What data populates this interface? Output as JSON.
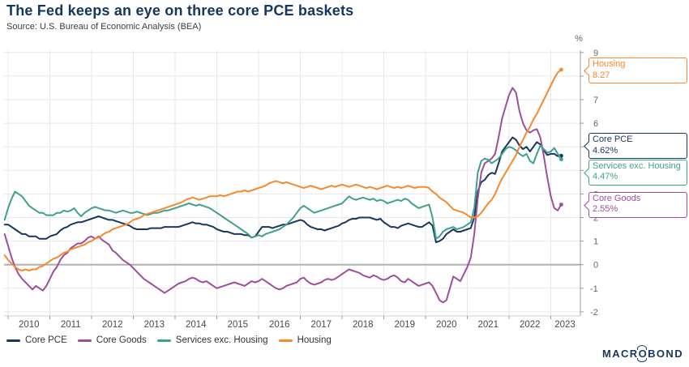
{
  "title": "The Fed keeps an eye on three core PCE baskets",
  "source": "Source: U.S. Bureau of Economic Analysis (BEA)",
  "axis": {
    "unit_label": "%",
    "y_ticks": [
      9,
      8,
      7,
      6,
      5,
      4,
      3,
      2,
      1,
      0,
      -1,
      -2
    ],
    "x_ticks": [
      2010,
      2011,
      2012,
      2013,
      2014,
      2015,
      2016,
      2017,
      2018,
      2019,
      2020,
      2021,
      2022,
      2023
    ]
  },
  "callouts": [
    {
      "label": "Housing",
      "value": "8.27",
      "color": "#f6882d"
    },
    {
      "label": "Core PCE",
      "value": "4.62%",
      "color": "#17375e"
    },
    {
      "label": "Services exc. Housing",
      "value": "4.47%",
      "color": "#3fa08d"
    },
    {
      "label": "Core Goods",
      "value": "2.55%",
      "color": "#9d4f9d"
    }
  ],
  "legend": [
    {
      "label": "Core PCE",
      "color": "#17375e"
    },
    {
      "label": "Core Goods",
      "color": "#9d4f9d"
    },
    {
      "label": "Services exc. Housing",
      "color": "#3fa08d"
    },
    {
      "label": "Housing",
      "color": "#f6882d"
    }
  ],
  "logo": {
    "pre": "MACR",
    "o": "O",
    "post": "BOND"
  },
  "chart_data": {
    "type": "line",
    "title": "The Fed keeps an eye on three core PCE baskets",
    "xlabel": "",
    "ylabel": "%",
    "ylim": [
      -2,
      9
    ],
    "x_range": [
      2010,
      2023
    ],
    "grid": true,
    "legend_position": "bottom",
    "frequency": "monthly",
    "x_start": "2009-12",
    "x_end": "2023-04",
    "series": [
      {
        "id": "core-pce",
        "name": "Core PCE",
        "color": "#17375e",
        "last_label": "4.62%",
        "values": [
          1.7,
          1.7,
          1.6,
          1.5,
          1.4,
          1.3,
          1.3,
          1.2,
          1.2,
          1.2,
          1.1,
          1.1,
          1.1,
          1.2,
          1.25,
          1.3,
          1.45,
          1.55,
          1.6,
          1.7,
          1.75,
          1.8,
          1.8,
          1.85,
          1.9,
          1.95,
          2.0,
          2.05,
          2.0,
          1.95,
          1.9,
          1.9,
          1.85,
          1.8,
          1.75,
          1.7,
          1.65,
          1.55,
          1.5,
          1.5,
          1.5,
          1.5,
          1.55,
          1.55,
          1.55,
          1.55,
          1.6,
          1.6,
          1.6,
          1.6,
          1.6,
          1.65,
          1.7,
          1.75,
          1.8,
          1.75,
          1.75,
          1.7,
          1.7,
          1.65,
          1.6,
          1.5,
          1.45,
          1.4,
          1.4,
          1.35,
          1.3,
          1.3,
          1.3,
          1.25,
          1.25,
          1.15,
          1.2,
          1.4,
          1.6,
          1.6,
          1.6,
          1.55,
          1.6,
          1.65,
          1.7,
          1.7,
          1.75,
          1.8,
          1.85,
          1.9,
          1.85,
          1.7,
          1.6,
          1.55,
          1.5,
          1.5,
          1.45,
          1.5,
          1.55,
          1.6,
          1.65,
          1.75,
          1.8,
          1.9,
          1.95,
          1.95,
          2.0,
          2.0,
          2.0,
          2.0,
          1.95,
          1.9,
          1.95,
          1.8,
          1.7,
          1.6,
          1.6,
          1.55,
          1.65,
          1.7,
          1.75,
          1.7,
          1.65,
          1.6,
          1.6,
          1.7,
          1.8,
          1.65,
          0.95,
          1.0,
          1.1,
          1.3,
          1.4,
          1.5,
          1.4,
          1.4,
          1.45,
          1.5,
          1.55,
          2.0,
          3.1,
          3.5,
          3.6,
          3.8,
          3.9,
          3.85,
          4.3,
          4.8,
          5.0,
          5.2,
          5.4,
          5.3,
          5.05,
          4.9,
          5.0,
          4.8,
          5.0,
          5.2,
          5.1,
          4.85,
          4.65,
          4.7,
          4.7,
          4.6,
          4.62
        ]
      },
      {
        "id": "core-goods",
        "name": "Core Goods",
        "color": "#9d4f9d",
        "last_label": "2.55%",
        "values": [
          1.3,
          0.8,
          0.3,
          -0.1,
          -0.4,
          -0.6,
          -0.75,
          -0.9,
          -1.05,
          -0.9,
          -1.0,
          -1.1,
          -0.9,
          -0.6,
          -0.3,
          -0.1,
          0.2,
          0.4,
          0.5,
          0.7,
          0.8,
          0.9,
          0.9,
          1.0,
          1.15,
          1.2,
          1.1,
          1.2,
          1.05,
          0.95,
          0.85,
          0.6,
          0.5,
          0.35,
          0.2,
          0.1,
          0.0,
          -0.15,
          -0.3,
          -0.45,
          -0.6,
          -0.7,
          -0.8,
          -0.9,
          -1.0,
          -1.1,
          -1.2,
          -1.1,
          -1.0,
          -0.9,
          -0.8,
          -0.75,
          -0.7,
          -0.6,
          -0.55,
          -0.6,
          -0.7,
          -0.75,
          -0.7,
          -0.8,
          -0.9,
          -1.0,
          -0.95,
          -0.9,
          -0.85,
          -0.8,
          -0.75,
          -0.8,
          -0.85,
          -0.9,
          -0.8,
          -0.7,
          -0.75,
          -0.7,
          -0.6,
          -0.7,
          -0.8,
          -0.9,
          -1.0,
          -1.05,
          -1.0,
          -0.9,
          -0.85,
          -0.8,
          -0.75,
          -0.6,
          -0.55,
          -0.7,
          -0.8,
          -0.85,
          -0.8,
          -0.75,
          -0.65,
          -0.6,
          -0.65,
          -0.6,
          -0.5,
          -0.4,
          -0.3,
          -0.2,
          -0.25,
          -0.3,
          -0.35,
          -0.45,
          -0.5,
          -0.55,
          -0.45,
          -0.5,
          -0.6,
          -0.65,
          -0.6,
          -0.5,
          -0.45,
          -0.55,
          -0.7,
          -0.75,
          -0.6,
          -0.7,
          -0.8,
          -0.9,
          -0.85,
          -0.8,
          -0.75,
          -0.9,
          -1.2,
          -1.5,
          -1.6,
          -1.5,
          -1.0,
          -0.5,
          -0.6,
          -0.7,
          -0.4,
          -0.1,
          0.3,
          1.3,
          2.8,
          3.9,
          4.3,
          4.4,
          4.5,
          4.7,
          5.4,
          6.2,
          6.7,
          7.2,
          7.5,
          7.3,
          6.5,
          6.0,
          5.7,
          5.6,
          5.7,
          5.75,
          5.4,
          4.6,
          3.7,
          2.9,
          2.4,
          2.3,
          2.55
        ]
      },
      {
        "id": "services-exc-housing",
        "name": "Services exc. Housing",
        "color": "#3fa08d",
        "last_label": "4.47%",
        "values": [
          1.9,
          2.4,
          2.8,
          3.1,
          3.0,
          2.9,
          2.7,
          2.5,
          2.4,
          2.3,
          2.2,
          2.2,
          2.1,
          2.1,
          2.1,
          2.2,
          2.2,
          2.3,
          2.25,
          2.3,
          2.4,
          2.2,
          2.05,
          2.2,
          2.3,
          2.4,
          2.45,
          2.4,
          2.35,
          2.3,
          2.3,
          2.25,
          2.2,
          2.25,
          2.3,
          2.25,
          2.2,
          2.2,
          2.25,
          2.2,
          2.15,
          2.1,
          2.15,
          2.2,
          2.2,
          2.25,
          2.3,
          2.3,
          2.35,
          2.4,
          2.45,
          2.5,
          2.55,
          2.6,
          2.55,
          2.5,
          2.55,
          2.5,
          2.45,
          2.4,
          2.3,
          2.2,
          2.1,
          2.0,
          1.9,
          1.8,
          1.7,
          1.6,
          1.5,
          1.4,
          1.3,
          1.15,
          1.2,
          1.25,
          1.2,
          1.3,
          1.35,
          1.4,
          1.45,
          1.5,
          1.6,
          1.7,
          1.85,
          2.0,
          2.2,
          2.4,
          2.5,
          2.4,
          2.3,
          2.2,
          2.25,
          2.3,
          2.35,
          2.4,
          2.45,
          2.5,
          2.55,
          2.6,
          2.75,
          2.9,
          2.8,
          2.75,
          2.8,
          2.85,
          2.8,
          2.75,
          2.8,
          2.7,
          2.75,
          2.7,
          2.6,
          2.65,
          2.7,
          2.75,
          2.7,
          2.8,
          2.75,
          2.6,
          2.5,
          2.4,
          2.45,
          2.5,
          2.55,
          2.0,
          1.1,
          1.2,
          1.4,
          1.5,
          1.55,
          1.6,
          1.5,
          1.55,
          1.6,
          1.7,
          1.8,
          2.4,
          3.9,
          4.4,
          4.5,
          4.45,
          4.3,
          4.4,
          4.5,
          4.7,
          4.9,
          5.0,
          4.95,
          4.85,
          4.7,
          4.6,
          4.7,
          4.4,
          4.3,
          4.7,
          5.05,
          4.9,
          4.75,
          4.8,
          4.95,
          4.7,
          4.47
        ]
      },
      {
        "id": "housing",
        "name": "Housing",
        "color": "#f6882d",
        "last_label": "8.27",
        "values": [
          0.4,
          0.2,
          0.05,
          -0.1,
          -0.2,
          -0.25,
          -0.2,
          -0.25,
          -0.2,
          -0.2,
          -0.1,
          -0.05,
          0.05,
          0.15,
          0.25,
          0.3,
          0.4,
          0.5,
          0.55,
          0.65,
          0.7,
          0.75,
          0.8,
          0.85,
          0.95,
          1.0,
          1.1,
          1.15,
          1.25,
          1.35,
          1.4,
          1.5,
          1.55,
          1.6,
          1.65,
          1.7,
          1.8,
          1.9,
          1.95,
          2.0,
          2.1,
          2.15,
          2.2,
          2.25,
          2.3,
          2.35,
          2.4,
          2.45,
          2.5,
          2.55,
          2.6,
          2.65,
          2.75,
          2.8,
          2.85,
          2.8,
          2.75,
          2.8,
          2.85,
          2.9,
          2.9,
          2.9,
          2.95,
          2.9,
          2.95,
          3.0,
          3.05,
          3.1,
          3.1,
          3.15,
          3.1,
          3.15,
          3.2,
          3.25,
          3.3,
          3.35,
          3.45,
          3.5,
          3.55,
          3.5,
          3.45,
          3.5,
          3.45,
          3.4,
          3.35,
          3.3,
          3.25,
          3.3,
          3.35,
          3.3,
          3.25,
          3.2,
          3.25,
          3.3,
          3.35,
          3.3,
          3.35,
          3.4,
          3.35,
          3.3,
          3.35,
          3.4,
          3.35,
          3.3,
          3.25,
          3.3,
          3.25,
          3.2,
          3.25,
          3.3,
          3.35,
          3.3,
          3.25,
          3.3,
          3.25,
          3.3,
          3.35,
          3.3,
          3.25,
          3.3,
          3.3,
          3.3,
          3.25,
          3.1,
          3.0,
          2.85,
          2.75,
          2.65,
          2.5,
          2.35,
          2.3,
          2.25,
          2.2,
          2.1,
          2.0,
          2.0,
          2.05,
          2.2,
          2.4,
          2.6,
          2.75,
          3.0,
          3.35,
          3.65,
          3.9,
          4.15,
          4.4,
          4.65,
          5.0,
          5.3,
          5.6,
          5.85,
          6.15,
          6.4,
          6.7,
          7.0,
          7.3,
          7.6,
          7.9,
          8.15,
          8.27
        ]
      }
    ]
  }
}
